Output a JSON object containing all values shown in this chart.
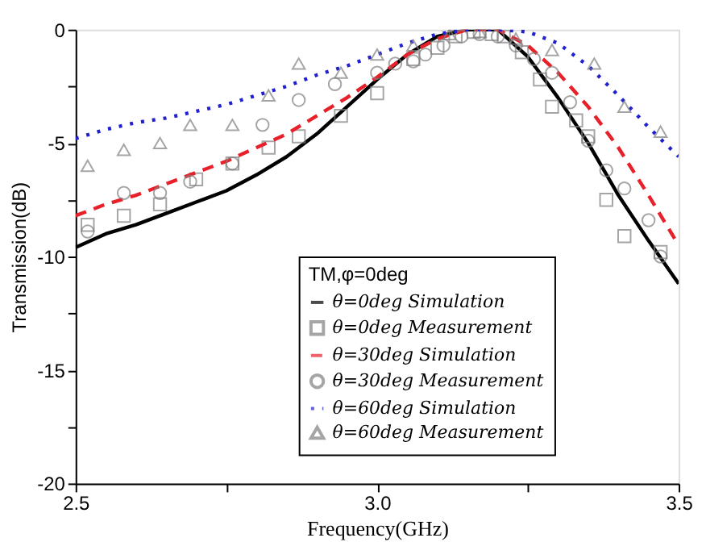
{
  "chart_data": {
    "type": "line",
    "xlabel": "Frequency(GHz)",
    "ylabel": "Transmission(dB)",
    "legend_title": "TM,φ=0deg",
    "xlim": [
      2.5,
      3.5
    ],
    "xticks": [
      2.5,
      {
        "value": 2.75,
        "label": null
      },
      {
        "value": 3.0,
        "label": "3.0"
      },
      {
        "value": 3.25,
        "label": null
      },
      3.5
    ],
    "ylim": [
      -20,
      0
    ],
    "yticks": [
      -20,
      {
        "value": -17.5,
        "label": null
      },
      -15,
      {
        "value": -12.5,
        "label": null
      },
      -10,
      {
        "value": -7.5,
        "label": null
      },
      -5,
      {
        "value": -2.5,
        "label": null
      },
      0
    ],
    "grid": false,
    "legend": "bottom",
    "series": [
      {
        "name": "θ=0deg Simulation",
        "color": "#000000",
        "line_style": "solid",
        "marker": "none",
        "x": [
          2.5,
          2.55,
          2.6,
          2.65,
          2.7,
          2.75,
          2.8,
          2.85,
          2.9,
          2.95,
          3.0,
          3.05,
          3.1,
          3.15,
          3.2,
          3.25,
          3.3,
          3.35,
          3.4,
          3.45,
          3.5
        ],
        "values": [
          -9.6,
          -9.0,
          -8.6,
          -8.1,
          -7.6,
          -7.1,
          -6.4,
          -5.6,
          -4.6,
          -3.4,
          -2.2,
          -1.1,
          -0.3,
          0,
          0,
          -1.2,
          -3.0,
          -5.0,
          -7.3,
          -9.3,
          -11.2
        ]
      },
      {
        "name": "θ=0deg Measurement",
        "type": "scatter",
        "color": "#808080",
        "marker": "square",
        "x": [
          2.52,
          2.58,
          2.64,
          2.7,
          2.76,
          2.82,
          2.87,
          2.94,
          3.0,
          3.06,
          3.1,
          3.13,
          3.16,
          3.19,
          3.21,
          3.24,
          3.27,
          3.29,
          3.33,
          3.35,
          3.38,
          3.41,
          3.47
        ],
        "values": [
          -8.6,
          -8.2,
          -7.7,
          -6.6,
          -5.9,
          -5.2,
          -4.7,
          -3.8,
          -2.8,
          -1.3,
          -0.8,
          -0.3,
          -0.1,
          -0.2,
          -0.3,
          -1.0,
          -2.2,
          -3.4,
          -4.0,
          -4.7,
          -7.5,
          -9.1,
          -9.8
        ]
      },
      {
        "name": "θ=30deg Simulation",
        "color": "#e8202a",
        "line_style": "dashed",
        "marker": "none",
        "x": [
          2.5,
          2.55,
          2.6,
          2.65,
          2.7,
          2.75,
          2.8,
          2.85,
          2.9,
          2.95,
          3.0,
          3.05,
          3.1,
          3.15,
          3.2,
          3.25,
          3.3,
          3.35,
          3.4,
          3.45,
          3.5
        ],
        "values": [
          -8.2,
          -7.7,
          -7.3,
          -6.8,
          -6.3,
          -5.8,
          -5.2,
          -4.6,
          -3.8,
          -3.0,
          -2.1,
          -1.1,
          -0.4,
          0,
          0,
          -0.7,
          -1.9,
          -3.4,
          -5.2,
          -7.3,
          -9.5
        ]
      },
      {
        "name": "θ=30deg Measurement",
        "type": "scatter",
        "color": "#808080",
        "marker": "circle",
        "x": [
          2.52,
          2.58,
          2.64,
          2.69,
          2.76,
          2.81,
          2.87,
          2.93,
          3.0,
          3.03,
          3.06,
          3.08,
          3.11,
          3.14,
          3.17,
          3.2,
          3.23,
          3.26,
          3.29,
          3.32,
          3.35,
          3.38,
          3.41,
          3.45,
          3.47
        ],
        "values": [
          -8.9,
          -7.2,
          -7.2,
          -6.7,
          -5.9,
          -4.2,
          -3.1,
          -2.4,
          -1.9,
          -1.5,
          -1.4,
          -1.1,
          -0.7,
          -0.3,
          -0.2,
          -0.3,
          -0.7,
          -1.3,
          -1.9,
          -3.2,
          -4.9,
          -6.2,
          -7.0,
          -8.4,
          -10.0
        ]
      },
      {
        "name": "θ=60deg Simulation",
        "color": "#2020d0",
        "line_style": "dotted",
        "marker": "none",
        "x": [
          2.5,
          2.55,
          2.6,
          2.65,
          2.7,
          2.75,
          2.8,
          2.85,
          2.9,
          2.95,
          3.0,
          3.05,
          3.1,
          3.15,
          3.2,
          3.25,
          3.3,
          3.35,
          3.4,
          3.45,
          3.5
        ],
        "values": [
          -4.8,
          -4.4,
          -4.1,
          -3.9,
          -3.6,
          -3.3,
          -2.9,
          -2.5,
          -2.0,
          -1.6,
          -1.1,
          -0.6,
          -0.2,
          0,
          0,
          -0.1,
          -0.6,
          -1.6,
          -2.9,
          -4.3,
          -5.6
        ]
      },
      {
        "name": "θ=60deg Measurement",
        "type": "scatter",
        "color": "#808080",
        "marker": "triangle",
        "x": [
          2.52,
          2.58,
          2.64,
          2.69,
          2.76,
          2.82,
          2.87,
          2.94,
          3.0,
          3.06,
          3.12,
          3.17,
          3.23,
          3.29,
          3.36,
          3.41,
          3.47
        ],
        "values": [
          -6.0,
          -5.3,
          -5.0,
          -4.2,
          -4.2,
          -2.9,
          -1.5,
          -1.9,
          -1.1,
          -0.7,
          -0.2,
          -0.1,
          -0.4,
          -0.9,
          -1.5,
          -3.4,
          -4.5
        ]
      }
    ]
  }
}
